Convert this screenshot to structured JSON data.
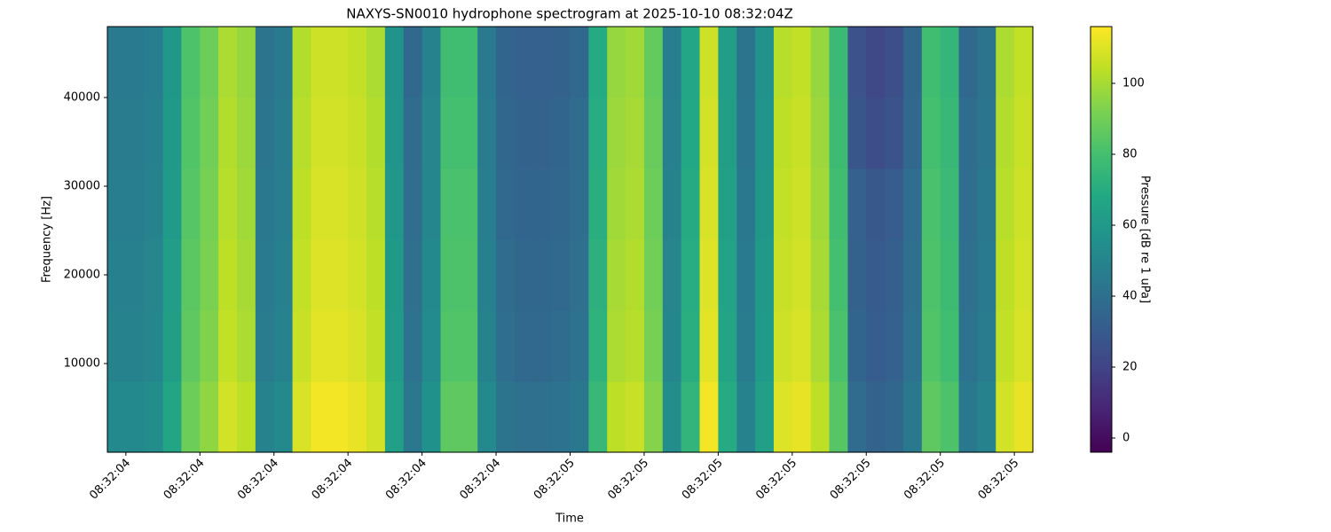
{
  "chart_data": {
    "type": "heatmap",
    "title": "NAXYS-SN0010 hydrophone spectrogram at 2025-10-10 08:32:04Z",
    "x_label": "Time",
    "y_label": "Frequency [Hz]",
    "colorbar_label": "Pressure [dB re 1 uPa]",
    "colormap": "viridis",
    "xlim": [
      4.375,
      5.625
    ],
    "xticks": [
      {
        "value": 4.4,
        "label": "08:32:04"
      },
      {
        "value": 4.5,
        "label": "08:32:04"
      },
      {
        "value": 4.6,
        "label": "08:32:04"
      },
      {
        "value": 4.7,
        "label": "08:32:04"
      },
      {
        "value": 4.8,
        "label": "08:32:04"
      },
      {
        "value": 4.9,
        "label": "08:32:04"
      },
      {
        "value": 5.0,
        "label": "08:32:05"
      },
      {
        "value": 5.1,
        "label": "08:32:05"
      },
      {
        "value": 5.2,
        "label": "08:32:05"
      },
      {
        "value": 5.3,
        "label": "08:32:05"
      },
      {
        "value": 5.4,
        "label": "08:32:05"
      },
      {
        "value": 5.5,
        "label": "08:32:05"
      },
      {
        "value": 5.6,
        "label": "08:32:05"
      }
    ],
    "ylim": [
      0,
      48000
    ],
    "yticks": [
      10000,
      20000,
      30000,
      40000
    ],
    "zlim": [
      -4,
      116
    ],
    "zticks": [
      0,
      20,
      40,
      60,
      80,
      100
    ],
    "x": [
      4.3875,
      4.4125,
      4.4375,
      4.4625,
      4.4875,
      4.5125,
      4.5375,
      4.5625,
      4.5875,
      4.6125,
      4.6375,
      4.6625,
      4.6875,
      4.7125,
      4.7375,
      4.7625,
      4.7875,
      4.8125,
      4.8375,
      4.8625,
      4.8875,
      4.9125,
      4.9375,
      4.9625,
      4.9875,
      5.0125,
      5.0375,
      5.0625,
      5.0875,
      5.1125,
      5.1375,
      5.1625,
      5.1875,
      5.2125,
      5.2375,
      5.2625,
      5.2875,
      5.3125,
      5.3375,
      5.3625,
      5.3875,
      5.4125,
      5.4375,
      5.4625,
      5.4875,
      5.5125,
      5.5375,
      5.5625,
      5.5875,
      5.6125
    ],
    "y": [
      4000,
      12000,
      20000,
      28000,
      36000,
      44000
    ],
    "z": [
      [
        52,
        52,
        54,
        66,
        89,
        96,
        108,
        104,
        49,
        52,
        109,
        114,
        114,
        112,
        108,
        64,
        44,
        56,
        86,
        86,
        52,
        42,
        40,
        40,
        41,
        44,
        76,
        104,
        106,
        94,
        54,
        74,
        114,
        69,
        49,
        64,
        110,
        112,
        104,
        84,
        38,
        34,
        36,
        44,
        86,
        82,
        44,
        49,
        108,
        112
      ],
      [
        49,
        49,
        51,
        63,
        86,
        93,
        105,
        101,
        46,
        49,
        106,
        111,
        111,
        109,
        105,
        61,
        41,
        53,
        83,
        83,
        49,
        39,
        37,
        37,
        38,
        41,
        73,
        101,
        103,
        91,
        51,
        71,
        111,
        66,
        46,
        61,
        107,
        109,
        101,
        81,
        35,
        31,
        33,
        41,
        83,
        79,
        41,
        46,
        105,
        109
      ],
      [
        48,
        48,
        50,
        62,
        85,
        92,
        104,
        100,
        45,
        48,
        105,
        110,
        110,
        108,
        104,
        60,
        40,
        52,
        82,
        82,
        48,
        38,
        36,
        36,
        37,
        40,
        72,
        100,
        102,
        90,
        50,
        70,
        110,
        65,
        45,
        60,
        106,
        108,
        100,
        80,
        34,
        30,
        32,
        40,
        82,
        78,
        40,
        45,
        104,
        108
      ],
      [
        47,
        47,
        49,
        61,
        84,
        91,
        103,
        99,
        44,
        47,
        104,
        109,
        109,
        107,
        103,
        59,
        39,
        51,
        81,
        81,
        47,
        37,
        35,
        35,
        36,
        39,
        71,
        99,
        101,
        89,
        49,
        69,
        109,
        64,
        44,
        59,
        105,
        107,
        99,
        79,
        33,
        29,
        31,
        39,
        81,
        77,
        39,
        44,
        103,
        107
      ],
      [
        46,
        46,
        48,
        60,
        83,
        90,
        102,
        98,
        43,
        46,
        103,
        108,
        108,
        106,
        102,
        58,
        38,
        50,
        80,
        80,
        46,
        36,
        34,
        34,
        35,
        38,
        70,
        98,
        100,
        88,
        48,
        68,
        108,
        63,
        43,
        58,
        104,
        106,
        98,
        78,
        28,
        24,
        27,
        37,
        80,
        76,
        38,
        43,
        102,
        106
      ],
      [
        45,
        45,
        47,
        59,
        82,
        89,
        101,
        97,
        42,
        45,
        102,
        107,
        107,
        105,
        101,
        57,
        37,
        49,
        79,
        79,
        45,
        35,
        33,
        33,
        34,
        37,
        69,
        97,
        99,
        87,
        47,
        67,
        107,
        62,
        42,
        57,
        103,
        105,
        97,
        77,
        26,
        22,
        25,
        36,
        79,
        75,
        37,
        42,
        101,
        105
      ]
    ]
  }
}
